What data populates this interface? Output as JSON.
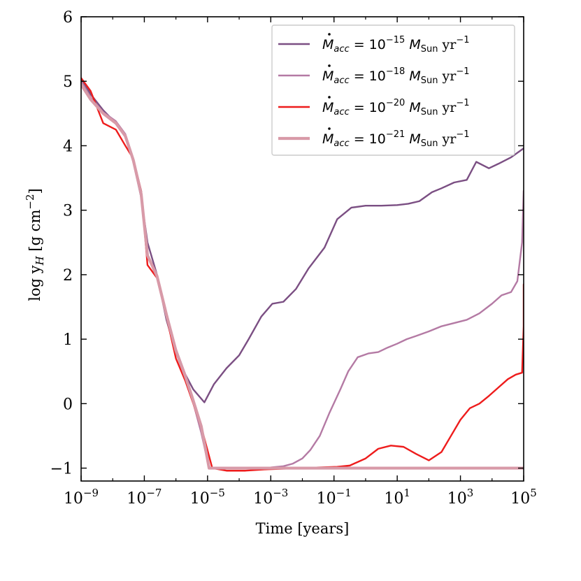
{
  "chart_data": {
    "type": "line",
    "title": "",
    "xlabel": "Time [years]",
    "ylabel_parts": {
      "base": "log y",
      "sub": "H",
      "rest": " [g cm",
      "sup": "−2",
      "end": "]"
    },
    "xscale": "log",
    "xlim": [
      1e-09,
      100000.0
    ],
    "ylim": [
      -1.2,
      6
    ],
    "x_ticks": [
      {
        "value": 1e-09,
        "base": "10",
        "exp": "−9"
      },
      {
        "value": 1e-07,
        "base": "10",
        "exp": "−7"
      },
      {
        "value": 1e-05,
        "base": "10",
        "exp": "−5"
      },
      {
        "value": 0.001,
        "base": "10",
        "exp": "−3"
      },
      {
        "value": 0.1,
        "base": "10",
        "exp": "−1"
      },
      {
        "value": 10.0,
        "base": "10",
        "exp": "1"
      },
      {
        "value": 1000.0,
        "base": "10",
        "exp": "3"
      },
      {
        "value": 100000.0,
        "base": "10",
        "exp": "5"
      }
    ],
    "y_ticks": [
      {
        "value": -1,
        "label": "−1"
      },
      {
        "value": 0,
        "label": "0"
      },
      {
        "value": 1,
        "label": "1"
      },
      {
        "value": 2,
        "label": "2"
      },
      {
        "value": 3,
        "label": "3"
      },
      {
        "value": 4,
        "label": "4"
      },
      {
        "value": 5,
        "label": "5"
      },
      {
        "value": 6,
        "label": "6"
      }
    ],
    "legend_position": "top-right",
    "series": [
      {
        "name": "Mdot_acc = 10^-15 M_Sun yr^-1",
        "legend": {
          "sym": "M",
          "sub": "acc",
          "eq": " = 10",
          "exp": "−15",
          "msym": "M",
          "msub": "Sun",
          "unit": " yr",
          "unit_exp": "−1"
        },
        "color": "#7b4f83",
        "width": 2.4,
        "points": [
          [
            -9.0,
            5.05
          ],
          [
            -8.7,
            4.8
          ],
          [
            -8.3,
            4.55
          ],
          [
            -7.9,
            4.35
          ],
          [
            -7.6,
            4.15
          ],
          [
            -7.35,
            3.75
          ],
          [
            -7.1,
            3.2
          ],
          [
            -6.9,
            2.5
          ],
          [
            -6.6,
            2.0
          ],
          [
            -6.3,
            1.3
          ],
          [
            -6.0,
            0.8
          ],
          [
            -5.7,
            0.45
          ],
          [
            -5.45,
            0.22
          ],
          [
            -5.1,
            0.02
          ],
          [
            -4.8,
            0.3
          ],
          [
            -4.4,
            0.55
          ],
          [
            -4.0,
            0.75
          ],
          [
            -3.7,
            1.0
          ],
          [
            -3.3,
            1.35
          ],
          [
            -2.95,
            1.55
          ],
          [
            -2.6,
            1.58
          ],
          [
            -2.2,
            1.78
          ],
          [
            -1.8,
            2.1
          ],
          [
            -1.3,
            2.42
          ],
          [
            -0.9,
            2.86
          ],
          [
            -0.45,
            3.04
          ],
          [
            0.0,
            3.07
          ],
          [
            0.5,
            3.07
          ],
          [
            1.0,
            3.08
          ],
          [
            1.35,
            3.1
          ],
          [
            1.7,
            3.14
          ],
          [
            2.1,
            3.28
          ],
          [
            2.4,
            3.34
          ],
          [
            2.8,
            3.43
          ],
          [
            3.2,
            3.47
          ],
          [
            3.5,
            3.75
          ],
          [
            3.9,
            3.65
          ],
          [
            4.2,
            3.72
          ],
          [
            4.6,
            3.82
          ],
          [
            5.0,
            3.96
          ]
        ]
      },
      {
        "name": "Mdot_acc = 10^-18 M_Sun yr^-1",
        "legend": {
          "sym": "M",
          "sub": "acc",
          "eq": " = 10",
          "exp": "−18",
          "msym": "M",
          "msub": "Sun",
          "unit": " yr",
          "unit_exp": "−1"
        },
        "color": "#b47aa4",
        "width": 2.4,
        "points": [
          [
            -9.0,
            5.0
          ],
          [
            -8.7,
            4.75
          ],
          [
            -8.3,
            4.52
          ],
          [
            -7.9,
            4.38
          ],
          [
            -7.6,
            4.18
          ],
          [
            -7.35,
            3.8
          ],
          [
            -7.1,
            3.3
          ],
          [
            -6.9,
            2.3
          ],
          [
            -6.6,
            1.95
          ],
          [
            -6.3,
            1.35
          ],
          [
            -6.0,
            0.85
          ],
          [
            -5.7,
            0.45
          ],
          [
            -5.5,
            0.1
          ],
          [
            -5.2,
            -0.45
          ],
          [
            -4.95,
            -1.0
          ],
          [
            -4.6,
            -1.0
          ],
          [
            -4.0,
            -1.0
          ],
          [
            -3.5,
            -1.0
          ],
          [
            -3.0,
            -0.99
          ],
          [
            -2.6,
            -0.97
          ],
          [
            -2.3,
            -0.93
          ],
          [
            -2.0,
            -0.85
          ],
          [
            -1.75,
            -0.72
          ],
          [
            -1.45,
            -0.5
          ],
          [
            -1.15,
            -0.15
          ],
          [
            -0.8,
            0.22
          ],
          [
            -0.55,
            0.5
          ],
          [
            -0.25,
            0.72
          ],
          [
            0.1,
            0.78
          ],
          [
            0.4,
            0.8
          ],
          [
            0.7,
            0.87
          ],
          [
            1.0,
            0.93
          ],
          [
            1.3,
            1.0
          ],
          [
            1.6,
            1.05
          ],
          [
            2.0,
            1.12
          ],
          [
            2.4,
            1.2
          ],
          [
            2.8,
            1.25
          ],
          [
            3.2,
            1.3
          ],
          [
            3.6,
            1.4
          ],
          [
            4.0,
            1.55
          ],
          [
            4.3,
            1.68
          ],
          [
            4.6,
            1.73
          ],
          [
            4.8,
            1.9
          ],
          [
            4.95,
            2.5
          ],
          [
            5.0,
            3.3
          ]
        ]
      },
      {
        "name": "Mdot_acc = 10^-20 M_Sun yr^-1",
        "legend": {
          "sym": "M",
          "sub": "acc",
          "eq": " = 10",
          "exp": "−20",
          "msym": "M",
          "msub": "Sun",
          "unit": " yr",
          "unit_exp": "−1"
        },
        "color": "#ee1c1c",
        "width": 2.4,
        "points": [
          [
            -9.0,
            5.05
          ],
          [
            -8.7,
            4.85
          ],
          [
            -8.3,
            4.35
          ],
          [
            -7.9,
            4.25
          ],
          [
            -7.6,
            4.0
          ],
          [
            -7.35,
            3.8
          ],
          [
            -7.1,
            3.3
          ],
          [
            -6.9,
            2.15
          ],
          [
            -6.6,
            1.95
          ],
          [
            -6.3,
            1.35
          ],
          [
            -6.0,
            0.7
          ],
          [
            -5.7,
            0.35
          ],
          [
            -5.45,
            0.0
          ],
          [
            -5.15,
            -0.45
          ],
          [
            -4.85,
            -1.0
          ],
          [
            -4.4,
            -1.04
          ],
          [
            -3.8,
            -1.04
          ],
          [
            -3.2,
            -1.02
          ],
          [
            -2.6,
            -1.01
          ],
          [
            -2.0,
            -1.0
          ],
          [
            -1.5,
            -0.99
          ],
          [
            -0.9,
            -0.98
          ],
          [
            -0.5,
            -0.96
          ],
          [
            0.0,
            -0.85
          ],
          [
            0.4,
            -0.7
          ],
          [
            0.8,
            -0.65
          ],
          [
            1.2,
            -0.67
          ],
          [
            1.6,
            -0.78
          ],
          [
            2.0,
            -0.88
          ],
          [
            2.4,
            -0.75
          ],
          [
            2.7,
            -0.5
          ],
          [
            3.0,
            -0.25
          ],
          [
            3.3,
            -0.07
          ],
          [
            3.6,
            0.0
          ],
          [
            3.9,
            0.12
          ],
          [
            4.2,
            0.25
          ],
          [
            4.5,
            0.38
          ],
          [
            4.75,
            0.45
          ],
          [
            4.95,
            0.48
          ],
          [
            5.0,
            1.2
          ],
          [
            5.0,
            1.85
          ]
        ]
      },
      {
        "name": "Mdot_acc = 10^-21 M_Sun yr^-1",
        "legend": {
          "sym": "M",
          "sub": "acc",
          "eq": " = 10",
          "exp": "−21",
          "msym": "M",
          "msub": "Sun",
          "unit": " yr",
          "unit_exp": "−1"
        },
        "color": "#d89aa8",
        "width": 4.2,
        "points": [
          [
            -9.0,
            4.95
          ],
          [
            -8.7,
            4.72
          ],
          [
            -8.3,
            4.5
          ],
          [
            -7.9,
            4.35
          ],
          [
            -7.6,
            4.15
          ],
          [
            -7.35,
            3.78
          ],
          [
            -7.1,
            3.25
          ],
          [
            -6.9,
            2.3
          ],
          [
            -6.6,
            1.98
          ],
          [
            -6.3,
            1.38
          ],
          [
            -6.0,
            0.82
          ],
          [
            -5.7,
            0.42
          ],
          [
            -5.5,
            0.12
          ],
          [
            -5.2,
            -0.35
          ],
          [
            -4.95,
            -1.0
          ],
          [
            -4.4,
            -1.0
          ],
          [
            -3.6,
            -1.0
          ],
          [
            -2.6,
            -1.0
          ],
          [
            -1.6,
            -1.0
          ],
          [
            -0.6,
            -1.0
          ],
          [
            0.4,
            -1.0
          ],
          [
            1.4,
            -1.0
          ],
          [
            2.4,
            -1.0
          ],
          [
            3.4,
            -1.0
          ],
          [
            4.4,
            -1.0
          ],
          [
            5.0,
            -1.0
          ]
        ]
      }
    ]
  }
}
